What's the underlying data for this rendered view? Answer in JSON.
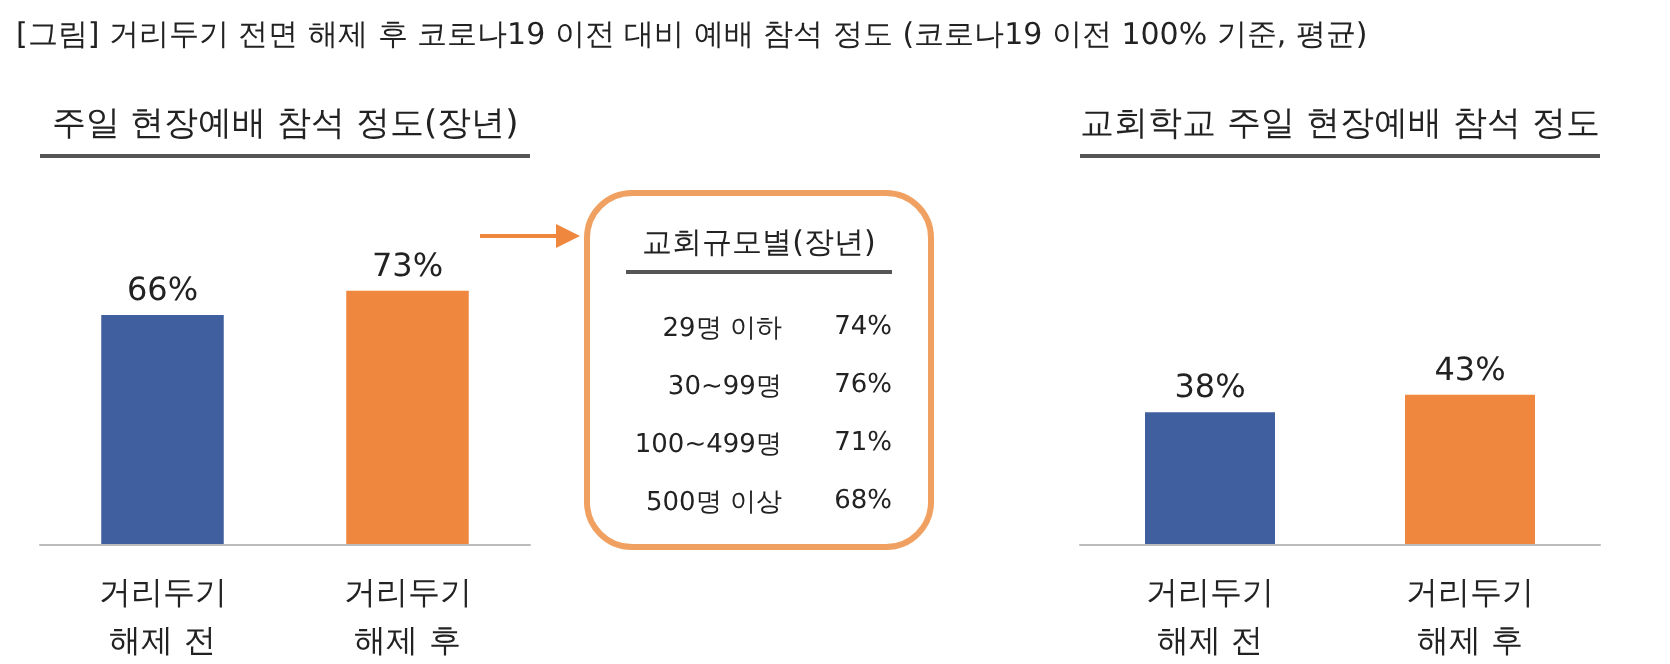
{
  "chart_data": [
    {
      "type": "bar",
      "title": "[그림] 거리두기 전면 해제 후 코로나19 이전 대비 예배 참석 정도 (코로나19 이전 100% 기준, 평균)",
      "subtitle": "주일 현장예배 참석 정도(장년)",
      "categories": [
        "거리두기\n해제 전",
        "거리두기\n해제 후"
      ],
      "values": [
        66,
        73
      ],
      "colors": [
        "#3f5f9e",
        "#f0873f"
      ],
      "value_labels": [
        "66%",
        "73%"
      ]
    },
    {
      "type": "other",
      "title": "교회규모별(장년)",
      "annotations": [
        "29명 이하",
        "74%",
        "30~99명",
        "76%",
        "100~499명",
        "71%",
        "500명 이상",
        "68%"
      ]
    },
    {
      "type": "bar",
      "subtitle": "교회학교 주일 현장예배 참석 정도",
      "categories": [
        "거리두기\n해제 전",
        "거리두기\n해제 후"
      ],
      "values": [
        38,
        43
      ],
      "colors": [
        "#3f5f9e",
        "#f0873f"
      ],
      "value_labels": [
        "38%",
        "43%"
      ]
    }
  ]
}
